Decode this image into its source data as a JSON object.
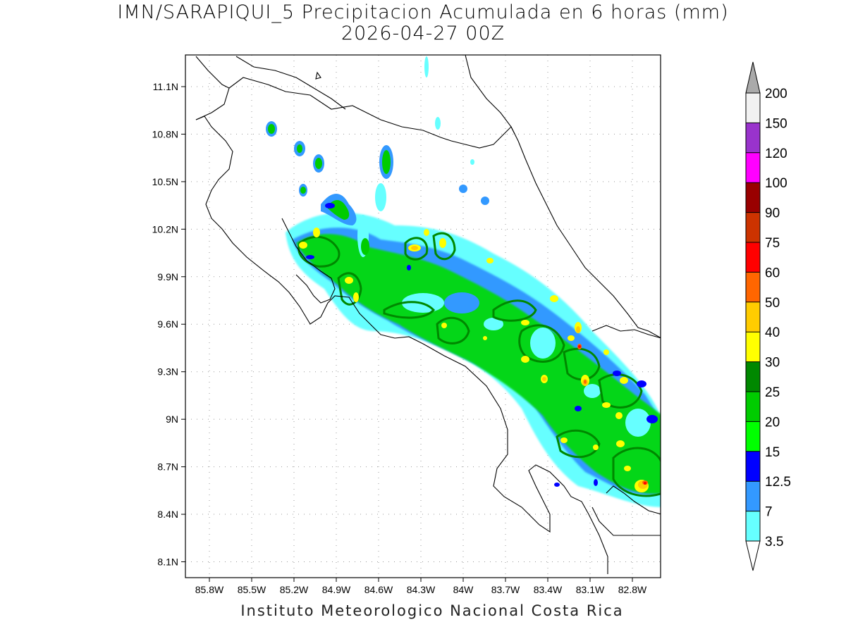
{
  "header": {
    "title": "IMN/SARAPIQUI_5 Precipitacion Acumulada en 6 horas (mm)",
    "subtitle": "2026-04-27 00Z"
  },
  "footer": {
    "credit": "Instituto Meteorologico Nacional Costa Rica"
  },
  "axes": {
    "x_ticks": [
      "85.8W",
      "85.5W",
      "85.2W",
      "84.9W",
      "84.6W",
      "84.3W",
      "84W",
      "83.7W",
      "83.4W",
      "83.1W",
      "82.8W"
    ],
    "y_ticks": [
      "11.1N",
      "10.8N",
      "10.5N",
      "10.2N",
      "9.9N",
      "9.6N",
      "9.3N",
      "9N",
      "8.7N",
      "8.4N",
      "8.1N"
    ],
    "x_range": [
      -85.97,
      -82.6
    ],
    "y_range": [
      8.0,
      11.3
    ],
    "grid": true
  },
  "colorbar": {
    "levels": [
      {
        "label": "3.5",
        "color": "#ffffff"
      },
      {
        "label": "7",
        "color": "#66ffff"
      },
      {
        "label": "12.5",
        "color": "#3399ff"
      },
      {
        "label": "15",
        "color": "#0000ff"
      },
      {
        "label": "20",
        "color": "#00ff00"
      },
      {
        "label": "25",
        "color": "#00cc00"
      },
      {
        "label": "30",
        "color": "#008800"
      },
      {
        "label": "40",
        "color": "#ffff00"
      },
      {
        "label": "50",
        "color": "#ffcc00"
      },
      {
        "label": "60",
        "color": "#ff6600"
      },
      {
        "label": "75",
        "color": "#ff0000"
      },
      {
        "label": "90",
        "color": "#cc3300"
      },
      {
        "label": "100",
        "color": "#990000"
      },
      {
        "label": "120",
        "color": "#ff00ff"
      },
      {
        "label": "150",
        "color": "#9933cc"
      },
      {
        "label": "200",
        "color": "#f2f2f2"
      }
    ],
    "top_arrow_color": "#aaaaaa",
    "bottom_arrow_color": "#ffffff"
  }
}
